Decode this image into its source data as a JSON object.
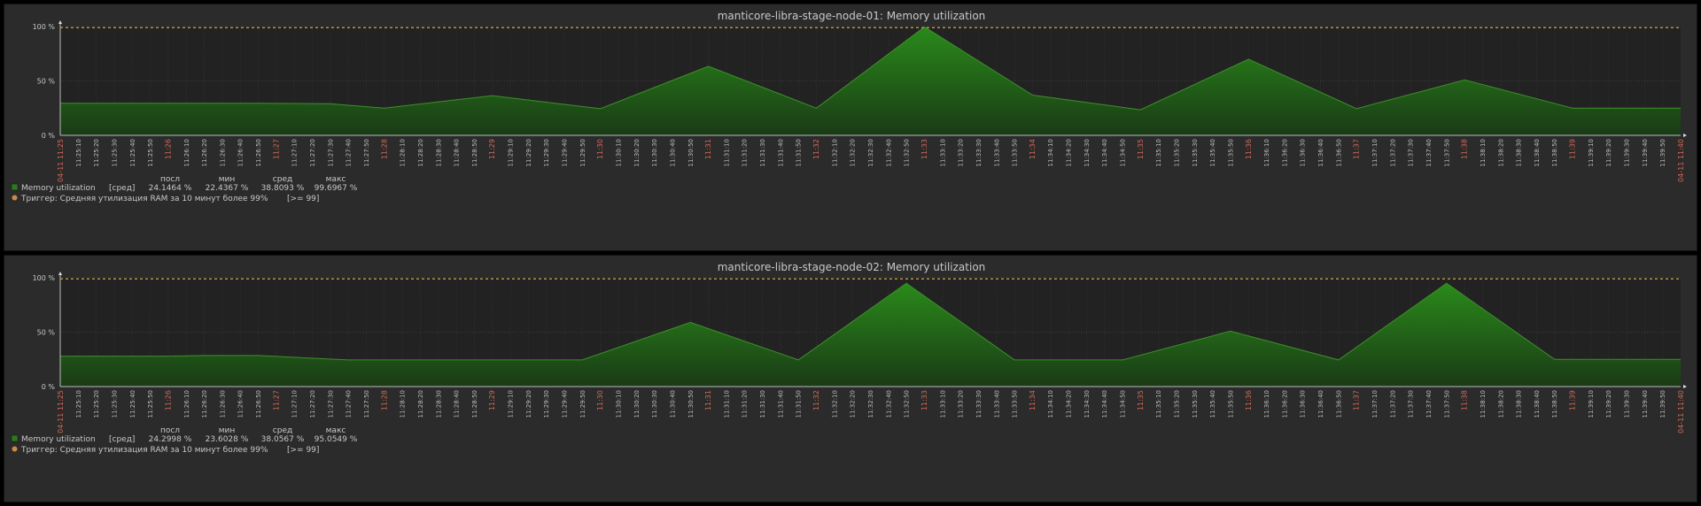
{
  "chart_data": [
    {
      "type": "area",
      "title": "manticore-libra-stage-node-01: Memory utilization",
      "y_ticks": [
        "100 %",
        "50 %",
        "0 %"
      ],
      "ylim": [
        0,
        100
      ],
      "x_start_label": "04-11 11:25",
      "x_end_label": "04-11 11:40",
      "x_tick_labels": [
        "11:25:10",
        "11:25:20",
        "11:25:30",
        "11:25:40",
        "11:25:50",
        "11:26",
        "11:26:10",
        "11:26:20",
        "11:26:30",
        "11:26:40",
        "11:26:50",
        "11:27",
        "11:27:10",
        "11:27:20",
        "11:27:30",
        "11:27:40",
        "11:27:50",
        "11:28",
        "11:28:10",
        "11:28:20",
        "11:28:30",
        "11:28:40",
        "11:28:50",
        "11:29",
        "11:29:10",
        "11:29:20",
        "11:29:30",
        "11:29:40",
        "11:29:50",
        "11:30",
        "11:30:10",
        "11:30:20",
        "11:30:30",
        "11:30:40",
        "11:30:50",
        "11:31",
        "11:31:10",
        "11:31:20",
        "11:31:30",
        "11:31:40",
        "11:31:50",
        "11:32",
        "11:32:10",
        "11:32:20",
        "11:32:30",
        "11:32:40",
        "11:32:50",
        "11:33",
        "11:33:10",
        "11:33:20",
        "11:33:30",
        "11:33:40",
        "11:33:50",
        "11:34",
        "11:34:10",
        "11:34:20",
        "11:34:30",
        "11:34:40",
        "11:34:50",
        "11:35",
        "11:35:10",
        "11:35:20",
        "11:35:30",
        "11:35:40",
        "11:35:50",
        "11:36",
        "11:36:10",
        "11:36:20",
        "11:36:30",
        "11:36:40",
        "11:36:50",
        "11:37",
        "11:37:10",
        "11:37:20",
        "11:37:30",
        "11:37:40",
        "11:37:50",
        "11:38",
        "11:38:10",
        "11:38:20",
        "11:38:30",
        "11:38:40",
        "11:38:50",
        "11:39",
        "11:39:10",
        "11:39:20",
        "11:39:30",
        "11:39:40",
        "11:39:50"
      ],
      "x": [
        "11:25:00",
        "11:26:00",
        "11:26:30",
        "11:26:50",
        "11:27:30",
        "11:28:00",
        "11:29:00",
        "11:30:00",
        "11:31:00",
        "11:32:00",
        "11:33:00",
        "11:34:00",
        "11:35:00",
        "11:36:00",
        "11:37:00",
        "11:38:00",
        "11:39:00",
        "11:40:00"
      ],
      "series": [
        {
          "name": "Memory utilization",
          "color": "#2c7a1f",
          "values": [
            29.5,
            29.5,
            29.5,
            29.5,
            29.0,
            25.0,
            36.5,
            24.5,
            63.5,
            25.0,
            99.7,
            37.0,
            23.5,
            70.0,
            24.5,
            51.0,
            25.0,
            25.0
          ]
        }
      ],
      "trigger_value": 99,
      "legend": {
        "series_name": "Memory utilization",
        "func": "[сред]",
        "headers": [
          "посл",
          "мин",
          "сред",
          "макс"
        ],
        "values": [
          "24.1464 %",
          "22.4367 %",
          "38.8093 %",
          "99.6967 %"
        ],
        "trigger_text": "Триггер: Средняя утилизация RAM за 10 минут более 99%",
        "trigger_cond": "[>= 99]"
      },
      "colors": {
        "area": "#2c7a1f",
        "trigger": "#e0a04a",
        "major_tick": "#d26a55"
      }
    },
    {
      "type": "area",
      "title": "manticore-libra-stage-node-02: Memory utilization",
      "y_ticks": [
        "100 %",
        "50 %",
        "0 %"
      ],
      "ylim": [
        0,
        100
      ],
      "x_start_label": "04-11 11:25",
      "x_end_label": "04-11 11:40",
      "x_tick_labels": [
        "11:25:10",
        "11:25:20",
        "11:25:30",
        "11:25:40",
        "11:25:50",
        "11:26",
        "11:26:10",
        "11:26:20",
        "11:26:30",
        "11:26:40",
        "11:26:50",
        "11:27",
        "11:27:10",
        "11:27:20",
        "11:27:30",
        "11:27:40",
        "11:27:50",
        "11:28",
        "11:28:10",
        "11:28:20",
        "11:28:30",
        "11:28:40",
        "11:28:50",
        "11:29",
        "11:29:10",
        "11:29:20",
        "11:29:30",
        "11:29:40",
        "11:29:50",
        "11:30",
        "11:30:10",
        "11:30:20",
        "11:30:30",
        "11:30:40",
        "11:30:50",
        "11:31",
        "11:31:10",
        "11:31:20",
        "11:31:30",
        "11:31:40",
        "11:31:50",
        "11:32",
        "11:32:10",
        "11:32:20",
        "11:32:30",
        "11:32:40",
        "11:32:50",
        "11:33",
        "11:33:10",
        "11:33:20",
        "11:33:30",
        "11:33:40",
        "11:33:50",
        "11:34",
        "11:34:10",
        "11:34:20",
        "11:34:30",
        "11:34:40",
        "11:34:50",
        "11:35",
        "11:35:10",
        "11:35:20",
        "11:35:30",
        "11:35:40",
        "11:35:50",
        "11:36",
        "11:36:10",
        "11:36:20",
        "11:36:30",
        "11:36:40",
        "11:36:50",
        "11:37",
        "11:37:10",
        "11:37:20",
        "11:37:30",
        "11:37:40",
        "11:37:50",
        "11:38",
        "11:38:10",
        "11:38:20",
        "11:38:30",
        "11:38:40",
        "11:38:50",
        "11:39",
        "11:39:10",
        "11:39:20",
        "11:39:30",
        "11:39:40",
        "11:39:50"
      ],
      "x": [
        "11:25:00",
        "11:26:00",
        "11:26:20",
        "11:26:50",
        "11:27:40",
        "11:29:00",
        "11:29:50",
        "11:30:50",
        "11:31:50",
        "11:32:50",
        "11:33:50",
        "11:34:50",
        "11:35:50",
        "11:36:50",
        "11:37:50",
        "11:38:50",
        "11:39:00",
        "11:40:00"
      ],
      "series": [
        {
          "name": "Memory utilization",
          "color": "#2c7a1f",
          "values": [
            28.0,
            28.0,
            28.5,
            28.5,
            24.5,
            24.5,
            24.5,
            59.0,
            24.5,
            95.0,
            24.5,
            24.5,
            51.0,
            24.5,
            95.0,
            25.0,
            25.0,
            25.0
          ]
        }
      ],
      "trigger_value": 99,
      "legend": {
        "series_name": "Memory utilization",
        "func": "[сред]",
        "headers": [
          "посл",
          "мин",
          "сред",
          "макс"
        ],
        "values": [
          "24.2998 %",
          "23.6028 %",
          "38.0567 %",
          "95.0549 %"
        ],
        "trigger_text": "Триггер: Средняя утилизация RAM за 10 минут более 99%",
        "trigger_cond": "[>= 99]"
      },
      "colors": {
        "area": "#2c7a1f",
        "trigger": "#e0a04a",
        "major_tick": "#d26a55"
      }
    }
  ]
}
